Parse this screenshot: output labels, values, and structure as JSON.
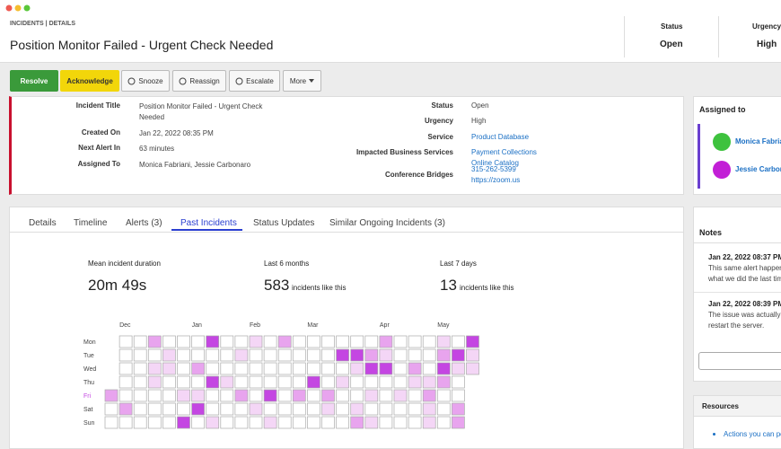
{
  "header": {
    "breadcrumb": "INCIDENTS | DETAILS",
    "title": "Position Monitor Failed - Urgent Check Needed",
    "status_label": "Status",
    "status": "Open",
    "urgency_label": "Urgency",
    "urgency": "High"
  },
  "buttons": [
    "Resolve",
    "Acknowledge",
    "Snooze",
    "Reassign",
    "Escalate",
    "More"
  ],
  "details": {
    "left": [
      {
        "label": "Incident Title",
        "value": "Position Monitor Failed - Urgent Check Needed"
      },
      {
        "label": "Created On",
        "value": "Jan 22, 2022 08:35 PM"
      },
      {
        "label": "Next Alert In",
        "value": "63 minutes"
      },
      {
        "label": "Assigned To",
        "value": "Monica Fabriani, Jessie Carbonaro"
      }
    ],
    "right": [
      {
        "label": "Status",
        "values": [
          "Open"
        ]
      },
      {
        "label": "Urgency",
        "values": [
          "High"
        ]
      },
      {
        "label": "Service",
        "values": [
          "Product Database"
        ],
        "link": true
      },
      {
        "label": "Impacted Business Services",
        "values": [
          "Payment Collections",
          "Online Catalog"
        ],
        "link": true
      },
      {
        "label": "Conference Bridges",
        "values": [
          "315-262-5399",
          "https://zoom.us"
        ],
        "link": true
      }
    ]
  },
  "tabs": [
    "Details",
    "Timeline",
    "Alerts (3)",
    "Past Incidents",
    "Status Updates",
    "Similar Ongoing Incidents (3)"
  ],
  "active_tab": 3,
  "stats": [
    {
      "label": "Mean incident duration",
      "value": "20m 49s"
    },
    {
      "label": "Last 6 months",
      "value": 583,
      "suffix": "incidents like this"
    },
    {
      "label": "Last 7 days",
      "value": 13,
      "suffix": "incidents like this"
    }
  ],
  "heatmap": {
    "months": [
      null,
      "Dec",
      null,
      null,
      null,
      null,
      "Jan",
      null,
      null,
      null,
      "Feb",
      null,
      null,
      null,
      "Mar",
      null,
      null,
      null,
      null,
      "Apr",
      null,
      null,
      null,
      "May",
      null,
      null
    ],
    "days": [
      "Mon",
      "Tue",
      "Wed",
      "Thu",
      "Fri",
      "Sat",
      "Sun"
    ],
    "colors": [
      "#ffffff",
      "#f4d6f6",
      "#e8a4ee",
      "#c446e2"
    ],
    "levels": [
      [
        null,
        0,
        0,
        2,
        0,
        0,
        0,
        3,
        0,
        0,
        1,
        0,
        2,
        0,
        0,
        0,
        0,
        0,
        0,
        2,
        0,
        0,
        0,
        1,
        0,
        3
      ],
      [
        null,
        0,
        0,
        0,
        1,
        0,
        0,
        0,
        0,
        1,
        0,
        0,
        0,
        0,
        0,
        0,
        3,
        3,
        2,
        1,
        0,
        0,
        0,
        2,
        3,
        1
      ],
      [
        null,
        0,
        0,
        1,
        1,
        0,
        2,
        0,
        0,
        0,
        0,
        0,
        0,
        0,
        0,
        0,
        0,
        1,
        3,
        3,
        0,
        2,
        0,
        3,
        1,
        1
      ],
      [
        null,
        0,
        0,
        1,
        0,
        0,
        0,
        3,
        1,
        0,
        0,
        0,
        0,
        0,
        3,
        0,
        1,
        0,
        0,
        0,
        0,
        1,
        1,
        2,
        0,
        null
      ],
      [
        2,
        0,
        0,
        0,
        0,
        1,
        1,
        0,
        0,
        2,
        0,
        3,
        0,
        2,
        0,
        2,
        0,
        0,
        1,
        0,
        1,
        0,
        2,
        0,
        0,
        null
      ],
      [
        0,
        2,
        0,
        0,
        0,
        0,
        3,
        0,
        0,
        0,
        1,
        0,
        0,
        0,
        0,
        1,
        0,
        1,
        0,
        0,
        0,
        0,
        1,
        0,
        2,
        null
      ],
      [
        0,
        0,
        0,
        0,
        0,
        3,
        0,
        1,
        0,
        0,
        0,
        1,
        0,
        0,
        0,
        0,
        0,
        2,
        1,
        0,
        0,
        0,
        1,
        0,
        2,
        null
      ]
    ]
  },
  "sidebar": {
    "assigned_title": "Assigned to",
    "assignees": [
      {
        "name": "Monica Fabriani",
        "color": "#3ec23e"
      },
      {
        "name": "Jessie Carbonaro",
        "color": "#c21fd6"
      }
    ],
    "notes_title": "Notes",
    "notes": [
      {
        "time": "Jan 22, 2022 08:37 PM",
        "lines": [
          "This same alert happened",
          "what we did the last time"
        ]
      },
      {
        "time": "Jan 22, 2022 08:39 PM",
        "lines": [
          "The issue was actually something",
          "restart the server."
        ]
      }
    ],
    "resources_title": "Resources",
    "resources": [
      "Actions you can perform"
    ]
  }
}
